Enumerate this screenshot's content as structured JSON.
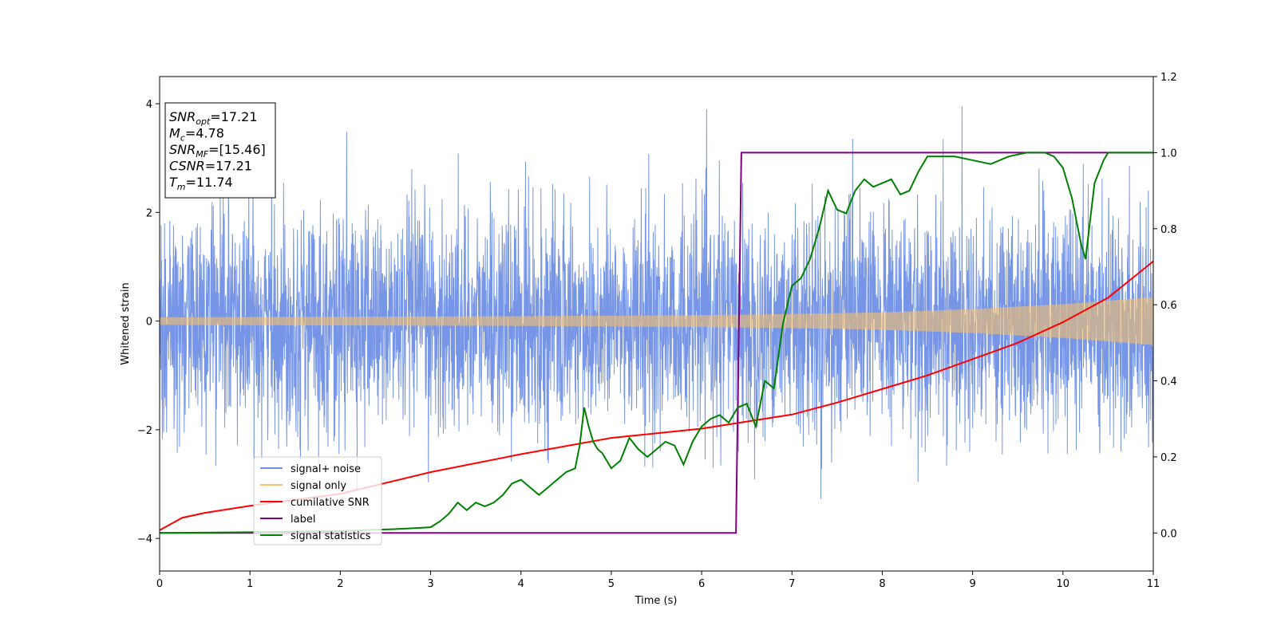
{
  "chart_data": {
    "type": "line",
    "xlabel": "Time (s)",
    "ylabel": "Whitened strain",
    "xlim": [
      0,
      11
    ],
    "ylim": [
      -4.6,
      4.5
    ],
    "y2lim": [
      -0.1,
      1.2
    ],
    "x_ticks": [
      "0",
      "1",
      "2",
      "3",
      "4",
      "5",
      "6",
      "7",
      "8",
      "9",
      "10",
      "11"
    ],
    "y_ticks": [
      "4",
      "2",
      "0",
      "−2",
      "−4"
    ],
    "y2_ticks": [
      "1.2",
      "1.0",
      "0.8",
      "0.6",
      "0.4",
      "0.2",
      "0.0"
    ],
    "legend_position": "lower-left",
    "annotation": {
      "lines": [
        {
          "base": "SNR",
          "sub": "opt",
          "value": "=17.21"
        },
        {
          "base": "M",
          "sub": "c",
          "value": "=4.78"
        },
        {
          "base": "SNR",
          "sub": "MF",
          "value": "=[15.46]"
        },
        {
          "base": "CSNR",
          "sub": "",
          "value": "=17.21"
        },
        {
          "base": "T",
          "sub": "m",
          "value": "=11.74"
        }
      ]
    },
    "series": [
      {
        "name": "signal+ noise",
        "color": "#6f8fe6",
        "axis": "left",
        "kind": "noise",
        "sigma": 1.0,
        "peak_max": 4.1,
        "peak_min": -4.15
      },
      {
        "name": "signal only",
        "color": "#f5c06a",
        "axis": "left",
        "kind": "chirp_envelope",
        "envelope": {
          "x": [
            0,
            2,
            4,
            6,
            7,
            8,
            9,
            10,
            11
          ],
          "y": [
            0.07,
            0.08,
            0.09,
            0.11,
            0.13,
            0.16,
            0.22,
            0.31,
            0.44
          ]
        }
      },
      {
        "name": "cumilative SNR",
        "color": "#ff0000",
        "axis": "left",
        "kind": "line",
        "x": [
          0,
          0.25,
          0.5,
          1,
          1.5,
          2,
          3,
          4,
          5,
          6,
          6.5,
          7,
          7.5,
          8,
          8.5,
          9,
          9.5,
          10,
          10.5,
          11
        ],
        "y": [
          -3.85,
          -3.62,
          -3.53,
          -3.4,
          -3.29,
          -3.18,
          -2.78,
          -2.45,
          -2.15,
          -1.98,
          -1.85,
          -1.72,
          -1.5,
          -1.25,
          -1.0,
          -0.7,
          -0.4,
          -0.02,
          0.43,
          1.1
        ]
      },
      {
        "name": "label",
        "color": "#800080",
        "axis": "right",
        "kind": "line",
        "x": [
          0,
          6.38,
          6.44,
          11
        ],
        "y": [
          0,
          0,
          1,
          1
        ]
      },
      {
        "name": "signal statistics",
        "color": "#008000",
        "axis": "right",
        "kind": "line",
        "x": [
          0,
          1,
          2,
          2.6,
          3.0,
          3.1,
          3.2,
          3.3,
          3.4,
          3.5,
          3.6,
          3.7,
          3.8,
          3.9,
          4.0,
          4.1,
          4.2,
          4.3,
          4.4,
          4.5,
          4.6,
          4.65,
          4.7,
          4.75,
          4.8,
          4.85,
          4.9,
          5.0,
          5.1,
          5.2,
          5.3,
          5.4,
          5.5,
          5.6,
          5.7,
          5.8,
          5.9,
          6.0,
          6.1,
          6.2,
          6.3,
          6.4,
          6.5,
          6.6,
          6.7,
          6.8,
          6.9,
          7.0,
          7.1,
          7.2,
          7.3,
          7.4,
          7.5,
          7.6,
          7.7,
          7.8,
          7.9,
          8.0,
          8.1,
          8.2,
          8.3,
          8.4,
          8.5,
          8.6,
          8.8,
          9.0,
          9.2,
          9.4,
          9.6,
          9.8,
          9.9,
          10.0,
          10.1,
          10.2,
          10.25,
          10.3,
          10.35,
          10.45,
          10.5,
          10.6,
          10.8,
          11.0
        ],
        "y": [
          0.0,
          0.002,
          0.005,
          0.01,
          0.015,
          0.03,
          0.05,
          0.08,
          0.06,
          0.08,
          0.07,
          0.08,
          0.1,
          0.13,
          0.14,
          0.12,
          0.1,
          0.12,
          0.14,
          0.16,
          0.17,
          0.23,
          0.33,
          0.28,
          0.24,
          0.22,
          0.21,
          0.17,
          0.19,
          0.25,
          0.22,
          0.2,
          0.22,
          0.24,
          0.23,
          0.18,
          0.24,
          0.28,
          0.3,
          0.31,
          0.29,
          0.33,
          0.34,
          0.28,
          0.4,
          0.38,
          0.55,
          0.65,
          0.67,
          0.72,
          0.8,
          0.9,
          0.85,
          0.84,
          0.9,
          0.93,
          0.91,
          0.92,
          0.93,
          0.89,
          0.9,
          0.95,
          0.99,
          0.99,
          0.99,
          0.98,
          0.97,
          0.99,
          1.0,
          1.0,
          0.99,
          0.96,
          0.88,
          0.76,
          0.72,
          0.82,
          0.92,
          0.98,
          1.0,
          1.0,
          1.0,
          1.0
        ]
      }
    ]
  }
}
